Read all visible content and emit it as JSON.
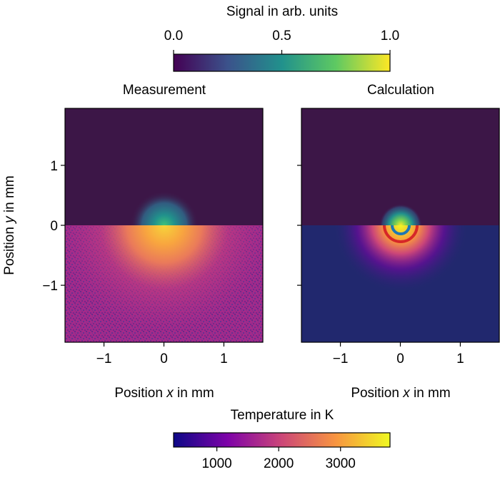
{
  "chart_data": [
    {
      "type": "heatmap",
      "title": "Measurement",
      "xlabel": "Position x in mm",
      "ylabel": "Position y in mm",
      "xlim": [
        -1.65,
        1.65
      ],
      "ylim": [
        -1.95,
        1.95
      ],
      "xticks": [
        "−1",
        "0",
        "1"
      ],
      "yticks": [
        "1",
        "0",
        "−1"
      ],
      "upper_half": "signal",
      "lower_half": "temperature"
    },
    {
      "type": "heatmap",
      "title": "Calculation",
      "xlabel": "Position x in mm",
      "xlim": [
        -1.65,
        1.65
      ],
      "ylim": [
        -1.95,
        1.95
      ],
      "xticks": [
        "−1",
        "0",
        "1"
      ],
      "upper_half": "signal",
      "lower_half": "temperature"
    }
  ],
  "colorbars": {
    "signal": {
      "label": "Signal in arb. units",
      "range": [
        0,
        1
      ],
      "ticks": [
        {
          "value": 0,
          "label": "0.0"
        },
        {
          "value": 0.5,
          "label": "0.5"
        },
        {
          "value": 1,
          "label": "1.0"
        }
      ],
      "colormap": [
        "#440154",
        "#3b528b",
        "#21918c",
        "#5ec962",
        "#fde725"
      ]
    },
    "temperature": {
      "label": "Temperature in K",
      "range": [
        300,
        3800
      ],
      "ticks": [
        {
          "value": 1000,
          "label": "1000"
        },
        {
          "value": 2000,
          "label": "2000"
        },
        {
          "value": 3000,
          "label": "3000"
        }
      ],
      "colormap": [
        "#0d0887",
        "#7e03a8",
        "#cc4778",
        "#f89540",
        "#f0f921"
      ]
    }
  }
}
